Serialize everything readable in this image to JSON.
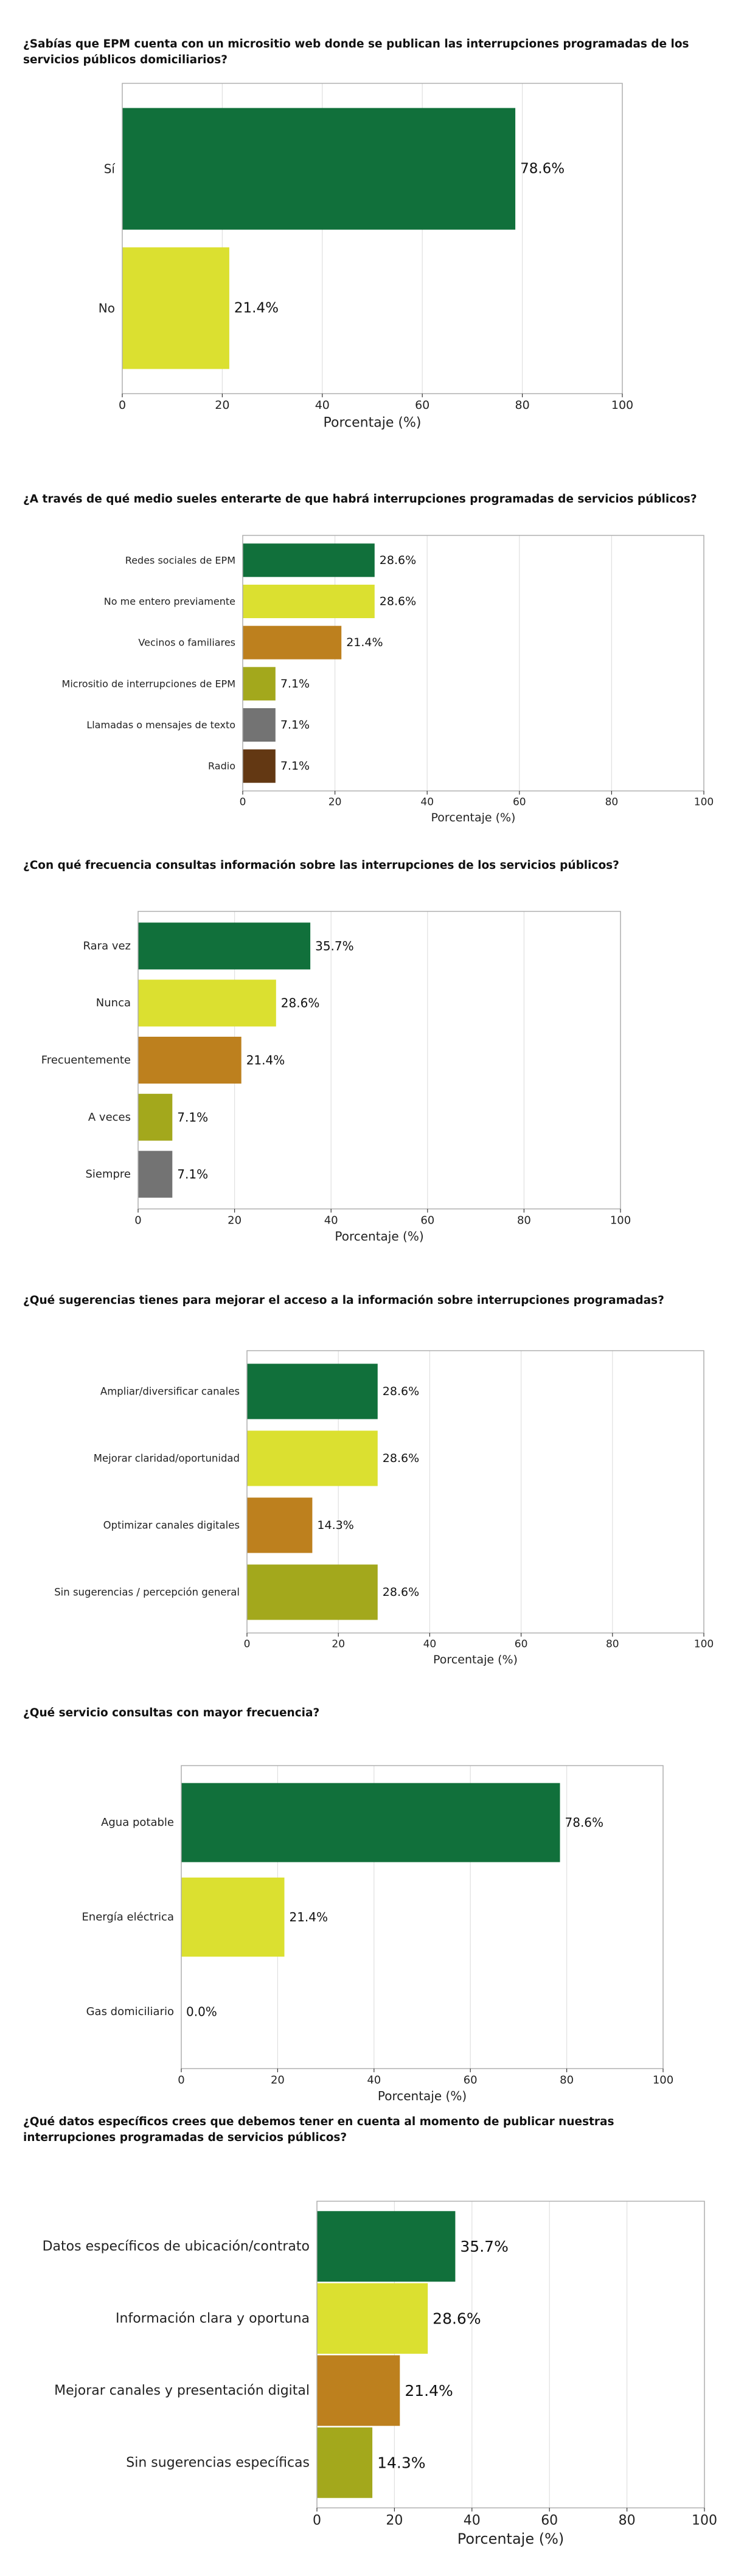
{
  "chart_data": [
    {
      "type": "bar",
      "orientation": "horizontal",
      "title": "¿Sabías que EPM cuenta con un micrositio web donde se publican las interrupciones programadas de los servicios públicos domiciliarios?",
      "categories": [
        "Sí",
        "No"
      ],
      "values": [
        78.6,
        21.4
      ],
      "value_labels": [
        "78.6%",
        "21.4%"
      ],
      "colors": [
        "#11703b",
        "#dbe030"
      ],
      "xlabel": "Porcentaje (%)",
      "ylabel": "",
      "xlim": [
        0,
        100
      ],
      "xticks": [
        "0",
        "20",
        "40",
        "60",
        "80",
        "100"
      ],
      "grid": "vertical"
    },
    {
      "type": "bar",
      "orientation": "horizontal",
      "title": "¿A través de qué medio sueles enterarte de que habrá interrupciones programadas de servicios públicos?",
      "categories": [
        "Redes sociales de EPM",
        "No me entero previamente",
        "Vecinos o familiares",
        "Micrositio de interrupciones de EPM",
        "Llamadas o mensajes de texto",
        "Radio"
      ],
      "values": [
        28.6,
        28.6,
        21.4,
        7.1,
        7.1,
        7.1
      ],
      "value_labels": [
        "28.6%",
        "28.6%",
        "21.4%",
        "7.1%",
        "7.1%",
        "7.1%"
      ],
      "colors": [
        "#11703b",
        "#dbe030",
        "#bd801e",
        "#a3a81c",
        "#737373",
        "#633813"
      ],
      "xlabel": "Porcentaje (%)",
      "ylabel": "",
      "xlim": [
        0,
        100
      ],
      "xticks": [
        "0",
        "20",
        "40",
        "60",
        "80",
        "100"
      ],
      "grid": "vertical"
    },
    {
      "type": "bar",
      "orientation": "horizontal",
      "title": "¿Con qué frecuencia consultas información sobre las interrupciones de los servicios públicos?",
      "categories": [
        "Rara vez",
        "Nunca",
        "Frecuentemente",
        "A veces",
        "Siempre"
      ],
      "values": [
        35.7,
        28.6,
        21.4,
        7.1,
        7.1
      ],
      "value_labels": [
        "35.7%",
        "28.6%",
        "21.4%",
        "7.1%",
        "7.1%"
      ],
      "colors": [
        "#11703b",
        "#dbe030",
        "#bd801e",
        "#a3a81c",
        "#737373"
      ],
      "xlabel": "Porcentaje (%)",
      "ylabel": "",
      "xlim": [
        0,
        100
      ],
      "xticks": [
        "0",
        "20",
        "40",
        "60",
        "80",
        "100"
      ],
      "grid": "vertical"
    },
    {
      "type": "bar",
      "orientation": "horizontal",
      "title": "¿Qué sugerencias tienes para mejorar el acceso a la información sobre interrupciones programadas?",
      "categories": [
        "Ampliar/diversificar canales",
        "Mejorar claridad/oportunidad",
        "Optimizar canales digitales",
        "Sin sugerencias / percepción general"
      ],
      "values": [
        28.6,
        28.6,
        14.3,
        28.6
      ],
      "value_labels": [
        "28.6%",
        "28.6%",
        "14.3%",
        "28.6%"
      ],
      "colors": [
        "#11703b",
        "#dbe030",
        "#bd801e",
        "#a3a81c"
      ],
      "xlabel": "Porcentaje (%)",
      "ylabel": "",
      "xlim": [
        0,
        100
      ],
      "xticks": [
        "0",
        "20",
        "40",
        "60",
        "80",
        "100"
      ],
      "grid": "vertical"
    },
    {
      "type": "bar",
      "orientation": "horizontal",
      "title": "¿Qué servicio consultas con mayor frecuencia?",
      "categories": [
        "Agua potable",
        "Energía eléctrica",
        "Gas domiciliario"
      ],
      "values": [
        78.6,
        21.4,
        0.0
      ],
      "value_labels": [
        "78.6%",
        "21.4%",
        "0.0%"
      ],
      "colors": [
        "#11703b",
        "#dbe030",
        "#bd801e"
      ],
      "xlabel": "Porcentaje (%)",
      "ylabel": "",
      "xlim": [
        0,
        100
      ],
      "xticks": [
        "0",
        "20",
        "40",
        "60",
        "80",
        "100"
      ],
      "grid": "vertical"
    },
    {
      "type": "bar",
      "orientation": "horizontal",
      "title": "¿Qué datos específicos crees que debemos tener en cuenta al momento de publicar nuestras interrupciones programadas de servicios públicos?",
      "categories": [
        "Datos específicos de ubicación/contrato",
        "Información clara y oportuna",
        "Mejorar canales y presentación digital",
        "Sin sugerencias específicas"
      ],
      "values": [
        35.7,
        28.6,
        21.4,
        14.3
      ],
      "value_labels": [
        "35.7%",
        "28.6%",
        "21.4%",
        "14.3%"
      ],
      "colors": [
        "#11703b",
        "#dbe030",
        "#bd801e",
        "#a3a81c"
      ],
      "xlabel": "Porcentaje (%)",
      "ylabel": "",
      "xlim": [
        0,
        100
      ],
      "xticks": [
        "0",
        "20",
        "40",
        "60",
        "80",
        "100"
      ],
      "grid": "vertical"
    }
  ]
}
